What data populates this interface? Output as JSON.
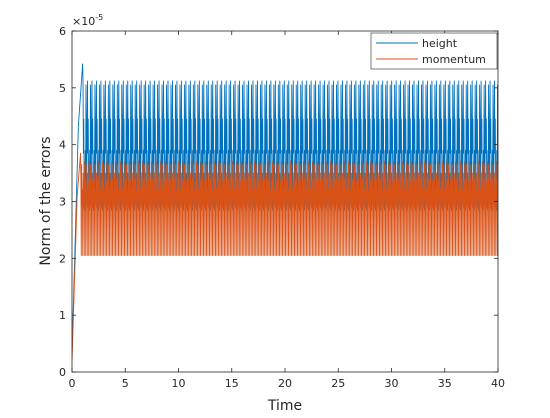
{
  "chart_data": {
    "type": "line",
    "title": "",
    "xlabel": "Time",
    "ylabel": "Norm of the errors",
    "exponent_base": "×10",
    "exponent_power": "-5",
    "xlim": [
      0,
      40
    ],
    "ylim": [
      0,
      6
    ],
    "xticks": [
      0,
      5,
      10,
      15,
      20,
      25,
      30,
      35,
      40
    ],
    "yticks": [
      0,
      1,
      2,
      3,
      4,
      5,
      6
    ],
    "y_scale": 1e-05,
    "grid": false,
    "legend_position": "top-right",
    "series": [
      {
        "name": "height",
        "color": "#0072BD",
        "start_value": 0.3,
        "initial_peak": {
          "x": 1.0,
          "y": 5.42
        },
        "period": 0.42,
        "levels": [
          5.12,
          3.85,
          4.45,
          3.2,
          3.55,
          2.85,
          3.9,
          3.3,
          5.05,
          3.6,
          2.95,
          4.5
        ]
      },
      {
        "name": "momentum",
        "color": "#D95319",
        "start_value": 0.2,
        "initial_peak": {
          "x": 0.8,
          "y": 3.85
        },
        "period": 0.42,
        "levels": [
          3.4,
          2.05,
          3.65,
          2.95,
          3.2,
          2.05,
          3.5,
          2.9,
          3.35,
          2.05,
          3.7,
          3.05
        ]
      }
    ]
  }
}
